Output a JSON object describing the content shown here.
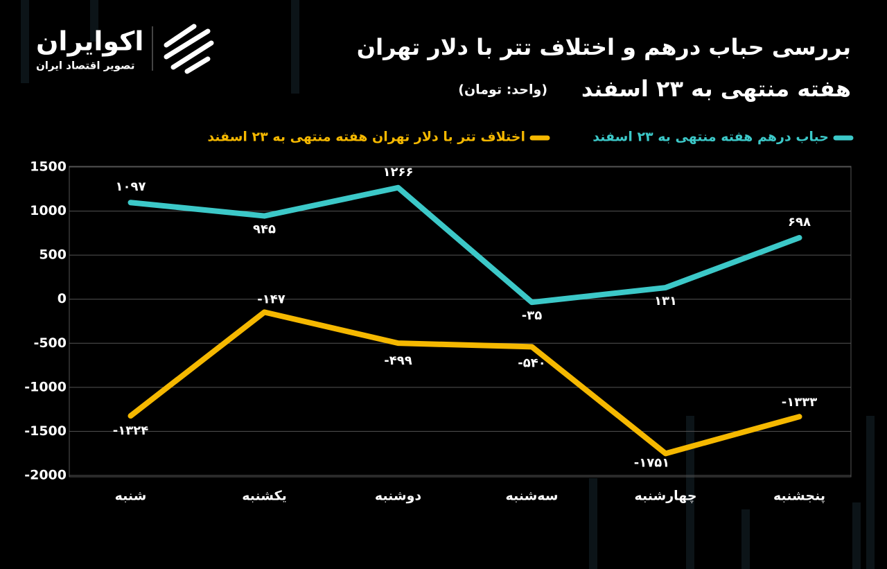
{
  "brand": {
    "name": "اکوایران",
    "tagline": "تصویر اقتصاد ایران"
  },
  "chart_data": {
    "type": "line",
    "title": "بررسی حباب درهم و اختلاف تتر با دلار تهران",
    "subtitle": "هفته منتهی به ۲۳ اسفند",
    "unit_note": "(واحد: تومان)",
    "categories": [
      "شنبه",
      "یکشنبه",
      "دوشنبه",
      "سه‌شنبه",
      "چهارشنبه",
      "پنجشنبه"
    ],
    "series": [
      {
        "name": "حباب درهم هفته منتهی به ۲۳ اسفند",
        "color": "#3cc8c8",
        "values": [
          1097,
          945,
          1266,
          -35,
          131,
          698
        ],
        "value_labels": [
          "۱۰۹۷",
          "۹۴۵",
          "۱۲۶۶",
          "-۳۵",
          "۱۳۱",
          "۶۹۸"
        ]
      },
      {
        "name": "اختلاف تتر با دلار تهران هفته منتهی به ۲۳ اسفند",
        "color": "#f5b800",
        "values": [
          -1324,
          -147,
          -499,
          -540,
          -1751,
          -1333
        ],
        "value_labels": [
          "-۱۳۲۴",
          "-۱۴۷",
          "-۴۹۹",
          "-۵۴۰",
          "-۱۷۵۱",
          "-۱۳۳۳"
        ]
      }
    ],
    "ylim": [
      -2000,
      1500
    ],
    "yticks": [
      -2000,
      -1500,
      -1000,
      -500,
      0,
      500,
      1000,
      1500
    ],
    "grid": true
  }
}
